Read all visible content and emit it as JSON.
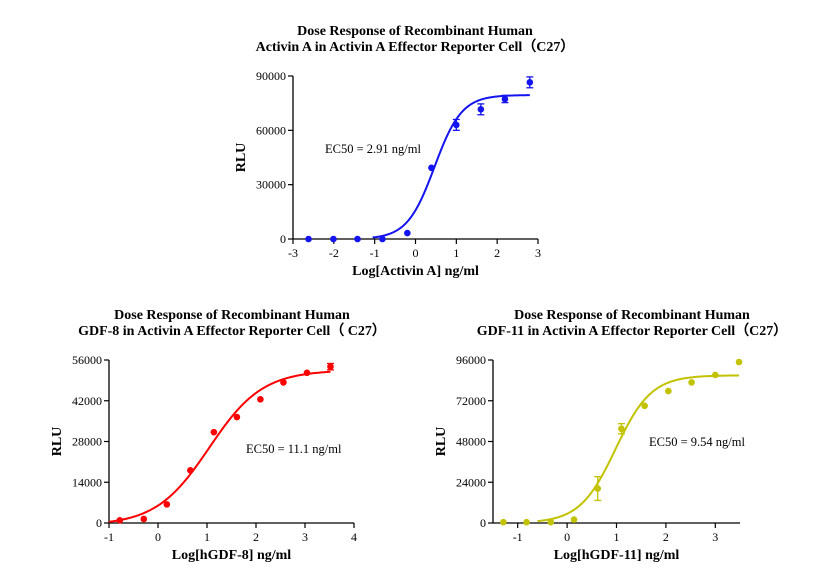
{
  "chart_data": [
    {
      "type": "scatter",
      "title": [
        "Dose Response of Recombinant Human",
        "Activin A in Activin A Effector Reporter Cell（C27）"
      ],
      "xlabel": "Log[Activin A] ng/ml",
      "ylabel": "RLU",
      "xlim": [
        -3,
        3
      ],
      "ylim": [
        0,
        90000
      ],
      "xticks": [
        "-3",
        "-2",
        "-1",
        "0",
        "1",
        "2",
        "3"
      ],
      "yticks": [
        "0",
        "30000",
        "60000",
        "90000"
      ],
      "annotation": "EC50 = 2.91 ng/ml",
      "color": "#1414f0",
      "x": [
        -2.62,
        -2.01,
        -1.42,
        -0.81,
        -0.2,
        0.39,
        1.0,
        1.6,
        2.19,
        2.8
      ],
      "y": [
        0,
        0,
        0,
        0,
        3300,
        39300,
        63000,
        71600,
        77300,
        86500
      ],
      "error": [
        0,
        0,
        0,
        0,
        0,
        0,
        3000,
        3000,
        2000,
        3000
      ],
      "fit": {
        "bottom": 0,
        "top": 79500,
        "logEC50": 0.464,
        "hill": 1.3,
        "xrange": [
          -1.05,
          2.8
        ]
      },
      "grid": false,
      "legend": "none"
    },
    {
      "type": "scatter",
      "title": [
        "Dose Response of Recombinant Human",
        "GDF-8 in Activin A Effector Reporter Cell（ C27）"
      ],
      "xlabel": "Log[hGDF-8] ng/ml",
      "ylabel": "RLU",
      "xlim": [
        -1,
        4
      ],
      "ylim": [
        0,
        56000
      ],
      "xticks": [
        "-1",
        "0",
        "1",
        "2",
        "3",
        "4"
      ],
      "yticks": [
        "0",
        "14000",
        "28000",
        "42000",
        "56000"
      ],
      "annotation": "EC50 = 11.1 ng/ml",
      "color": "#ff0000",
      "x": [
        -0.78,
        -0.29,
        0.18,
        0.66,
        1.14,
        1.61,
        2.09,
        2.56,
        3.04,
        3.52
      ],
      "y": [
        920,
        1380,
        6400,
        18100,
        31200,
        36400,
        42500,
        48300,
        51600,
        53700
      ],
      "error": [
        0,
        0,
        0,
        0,
        0,
        0,
        0,
        0,
        0,
        1100
      ],
      "fit": {
        "bottom": -800,
        "top": 52500,
        "logEC50": 1.045,
        "hill": 0.8,
        "xrange": [
          -1,
          3.52
        ]
      },
      "grid": false,
      "legend": "none"
    },
    {
      "type": "scatter",
      "title": [
        "Dose Response of Recombinant Human",
        "GDF-11 in Activin A Effector Reporter Cell（C27）"
      ],
      "xlabel": "Log[hGDF-11] ng/ml",
      "ylabel": "RLU",
      "xlim": [
        -1.5,
        3.5
      ],
      "ylim": [
        0,
        96000
      ],
      "xticks": [
        "-1",
        "0",
        "1",
        "2",
        "3"
      ],
      "yticks": [
        "0",
        "24000",
        "48000",
        "72000",
        "96000"
      ],
      "annotation": "EC50 = 9.54 ng/ml",
      "color": "#c2c200",
      "x": [
        -1.29,
        -0.82,
        -0.33,
        0.14,
        0.62,
        1.1,
        1.57,
        2.05,
        2.52,
        3.0,
        3.48
      ],
      "y": [
        500,
        500,
        500,
        2000,
        20300,
        55500,
        69000,
        77700,
        82800,
        87200,
        94800
      ],
      "error": [
        0,
        0,
        0,
        0,
        7000,
        3000,
        0,
        0,
        0,
        0,
        0
      ],
      "fit": {
        "bottom": 0,
        "top": 87000,
        "logEC50": 0.98,
        "hill": 1.2,
        "xrange": [
          -0.6,
          3.48
        ]
      },
      "grid": false,
      "legend": "none"
    }
  ]
}
